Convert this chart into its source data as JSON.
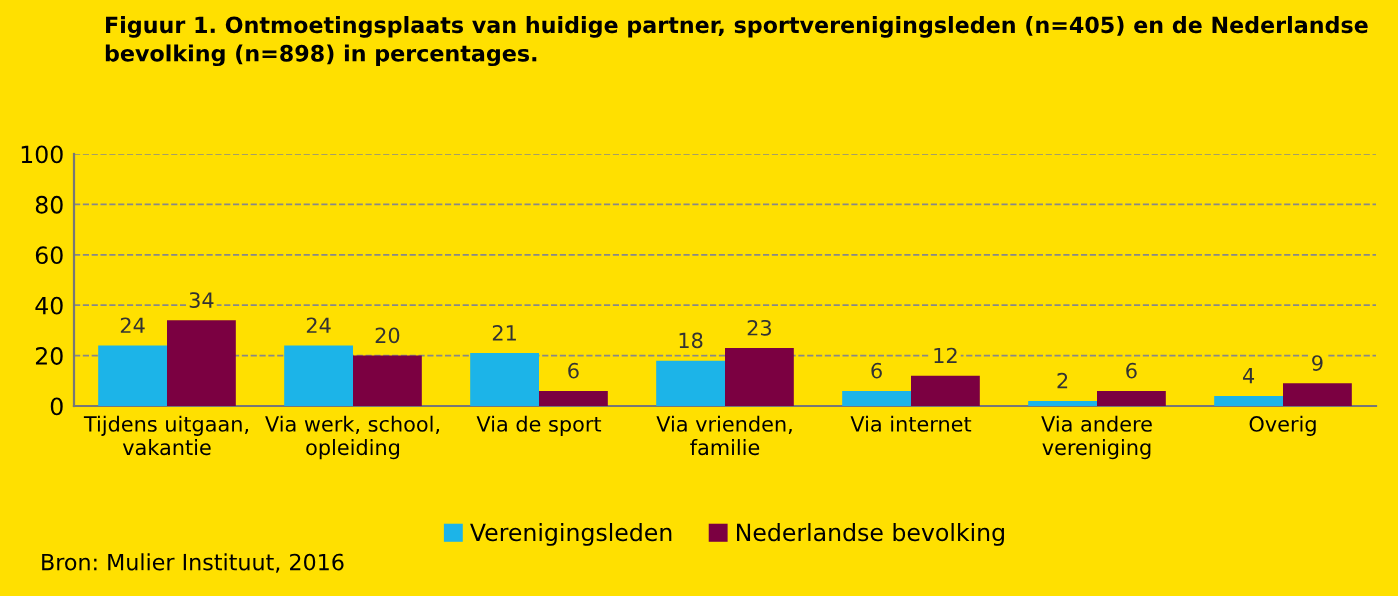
{
  "chart_data": {
    "type": "bar",
    "title": "Figuur 1. Ontmoetingsplaats van huidige partner, sportverenigingsleden (n=405) en de Nederlandse bevolking (n=898) in percentages.",
    "categories": [
      "Tijdens uitgaan,\nvakantie",
      "Via werk, school,\nopleiding",
      "Via de sport",
      "Via vrienden,\nfamilie",
      "Via internet",
      "Via andere\nvereniging",
      "Overig"
    ],
    "series": [
      {
        "name": "Verenigingsleden",
        "color": "#1cb4e8",
        "values": [
          24,
          24,
          21,
          18,
          6,
          2,
          4
        ]
      },
      {
        "name": "Nederlandse bevolking",
        "color": "#7b0041",
        "values": [
          34,
          20,
          6,
          23,
          12,
          6,
          9
        ]
      }
    ],
    "ylim": [
      0,
      100
    ],
    "yticks": [
      0,
      20,
      40,
      60,
      80,
      100
    ],
    "grid": "y",
    "legend": "bottom",
    "data_labels": true,
    "annotations": [
      "Bron: Mulier Instituut, 2016"
    ]
  }
}
